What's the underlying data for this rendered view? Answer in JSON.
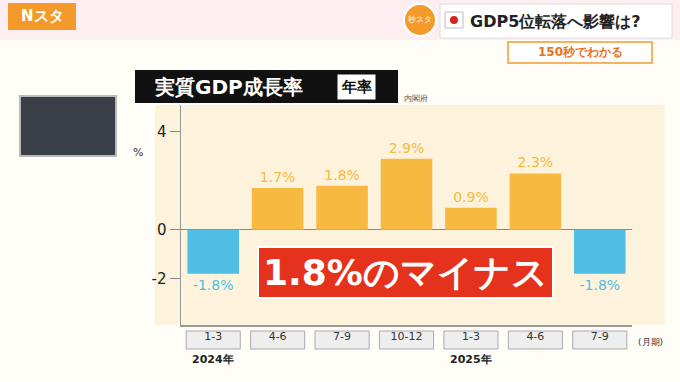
{
  "header": {
    "logo": "Nスタ",
    "badge": "秒スタ",
    "headline": "GDP5位転落へ影響は?",
    "subheadline": "150秒でわかる"
  },
  "chart_data": {
    "type": "bar",
    "title": "実質GDP成長率",
    "subtitle": "年率",
    "source": "内閣府",
    "categories": [
      "1-3",
      "4-6",
      "7-9",
      "10-12",
      "1-3",
      "4-6",
      "7-9"
    ],
    "values": [
      -1.8,
      1.7,
      1.8,
      2.9,
      0.9,
      2.3,
      -1.8
    ],
    "value_labels": [
      "-1.8%",
      "1.7%",
      "1.8%",
      "2.9%",
      "0.9%",
      "2.3%",
      "-1.8%"
    ],
    "colors": [
      "#4fbfe6",
      "#f7b940",
      "#f7b940",
      "#f7b940",
      "#f7b940",
      "#f7b940",
      "#4fbfe6"
    ],
    "category_groups": [
      {
        "label": "2024年",
        "start": 0
      },
      {
        "label": "2025年",
        "start": 4
      }
    ],
    "xlabel": "(月期)",
    "ylabel": "%",
    "ylim": [
      -3.9,
      5.1
    ],
    "yticks": [
      -2,
      0,
      4
    ],
    "annotations": [
      "1.8%のマイナス"
    ],
    "data_labels": true,
    "grid": false
  }
}
